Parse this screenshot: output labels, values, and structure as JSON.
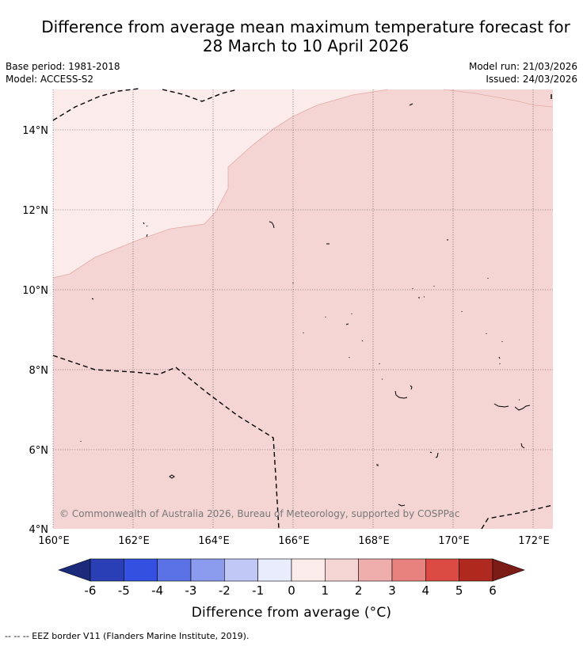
{
  "title": {
    "line1": "Difference from average mean maximum temperature forecast for",
    "line2": "28 March to 10 April 2026"
  },
  "meta": {
    "base_period": "Base period: 1981-2018",
    "model": "Model: ACCESS-S2",
    "model_run": "Model run: 21/03/2026",
    "issued": "Issued: 24/03/2026"
  },
  "map": {
    "lat_labels": [
      "14°N",
      "12°N",
      "10°N",
      "8°N",
      "6°N",
      "4°N"
    ],
    "lon_labels": [
      "160°E",
      "162°E",
      "164°E",
      "166°E",
      "168°E",
      "170°E",
      "172°E"
    ],
    "copyright": "© Commonwealth of Australia 2026, Bureau of Meteorology, supported by COSPPac",
    "colors": {
      "anomaly_0_1": "#fbeceb",
      "anomaly_1_2": "#f5d5d3",
      "coastline": "#000000",
      "eez_border": "#000000"
    }
  },
  "colorbar": {
    "ticks": [
      "-6",
      "-5",
      "-4",
      "-3",
      "-2",
      "-1",
      "0",
      "1",
      "2",
      "3",
      "4",
      "5",
      "6"
    ],
    "colors": [
      "#1c2a7c",
      "#2a3fb5",
      "#3350e0",
      "#5b72e6",
      "#8b9bee",
      "#c1c8f6",
      "#e9ecfc",
      "#fbeceb",
      "#f5d5d3",
      "#efadab",
      "#e7827e",
      "#dc4b43",
      "#b0291f",
      "#7b1c17"
    ],
    "label": "Difference from average (°C)"
  },
  "footer": {
    "eez_legend": "--  --  -- EEZ border V11 (Flanders Marine Institute, 2019)."
  }
}
